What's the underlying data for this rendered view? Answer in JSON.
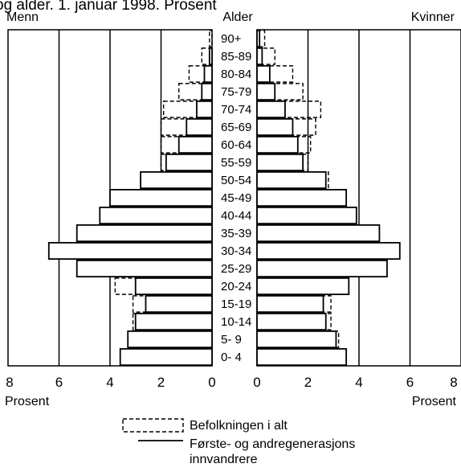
{
  "chart_data": {
    "type": "bar",
    "title": "og alder. 1. januar 1998. Prosent",
    "category_header": "Alder",
    "left_panel_label": "Menn",
    "right_panel_label": "Kvinner",
    "xlabel": "Prosent",
    "xlim": [
      0,
      8
    ],
    "x_ticks": [
      "8",
      "6",
      "4",
      "2",
      "0",
      "0",
      "2",
      "4",
      "6",
      "8"
    ],
    "categories": [
      "0- 4",
      "5- 9",
      "10-14",
      "15-19",
      "20-24",
      "25-29",
      "30-34",
      "35-39",
      "40-44",
      "45-49",
      "50-54",
      "55-59",
      "60-64",
      "65-69",
      "70-74",
      "75-79",
      "80-84",
      "85-89",
      "90+"
    ],
    "series": [
      {
        "name": "Befolkningen i alt",
        "style": "dashed-outline",
        "men": [
          3.5,
          3.3,
          3.1,
          3.1,
          3.8,
          4.0,
          3.8,
          3.7,
          3.6,
          3.7,
          2.8,
          2.0,
          2.0,
          2.0,
          1.9,
          1.3,
          0.9,
          0.4,
          0.1
        ],
        "women": [
          3.4,
          3.2,
          2.9,
          2.9,
          3.6,
          3.9,
          3.7,
          3.6,
          3.5,
          3.5,
          2.8,
          2.0,
          2.1,
          2.3,
          2.5,
          1.8,
          1.4,
          0.7,
          0.3
        ]
      },
      {
        "name": "Første- og andregenerasjons innvandrere",
        "style": "solid-outline",
        "men": [
          3.6,
          3.3,
          3.0,
          2.6,
          3.0,
          5.3,
          6.4,
          5.3,
          4.4,
          4.0,
          2.8,
          1.8,
          1.3,
          1.0,
          0.6,
          0.4,
          0.3,
          0.1,
          0.0
        ],
        "women": [
          3.5,
          3.1,
          2.7,
          2.6,
          3.6,
          5.1,
          5.6,
          4.8,
          3.9,
          3.5,
          2.7,
          1.8,
          1.6,
          1.4,
          1.1,
          0.7,
          0.5,
          0.2,
          0.1
        ]
      }
    ],
    "grid": true,
    "legend_position": "bottom"
  },
  "legend": {
    "items": [
      {
        "label": "Befolkningen i alt"
      },
      {
        "label_line1": "Første- og andregenerasjons",
        "label_line2": "innvandrere"
      }
    ]
  }
}
